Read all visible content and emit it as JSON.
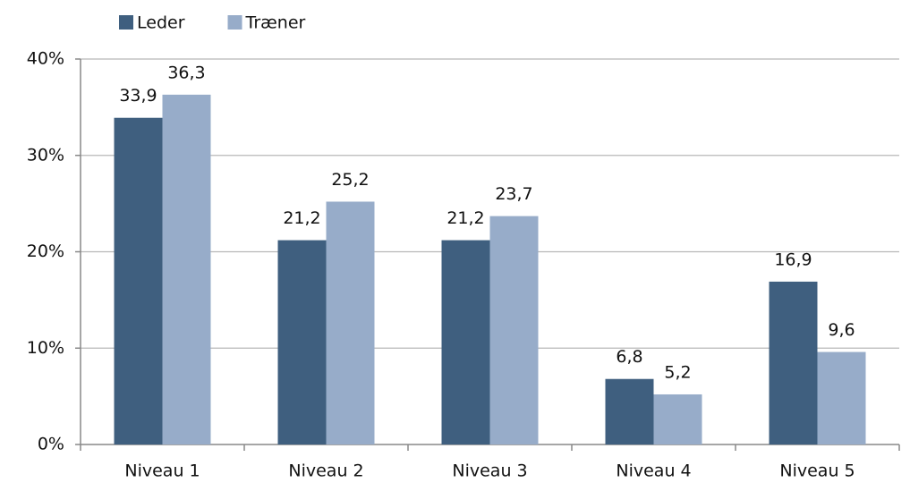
{
  "chart_data": {
    "type": "bar",
    "categories": [
      "Niveau 1",
      "Niveau 2",
      "Niveau 3",
      "Niveau 4",
      "Niveau 5"
    ],
    "series": [
      {
        "name": "Leder",
        "color": "#3f5f7f",
        "values": [
          33.9,
          21.2,
          21.2,
          6.8,
          16.9
        ],
        "value_labels": [
          "33,9",
          "21,2",
          "21,2",
          "6,8",
          "16,9"
        ]
      },
      {
        "name": "Træner",
        "color": "#97acc9",
        "values": [
          36.3,
          25.2,
          23.7,
          5.2,
          9.6
        ],
        "value_labels": [
          "36,3",
          "25,2",
          "23,7",
          "5,2",
          "9,6"
        ]
      }
    ],
    "ylim": [
      0,
      40
    ],
    "yticks": [
      {
        "value": 0,
        "label": "0%"
      },
      {
        "value": 10,
        "label": "10%"
      },
      {
        "value": 20,
        "label": "20%"
      },
      {
        "value": 30,
        "label": "30%"
      },
      {
        "value": 40,
        "label": "40%"
      }
    ],
    "grid": true,
    "legend": "top"
  }
}
